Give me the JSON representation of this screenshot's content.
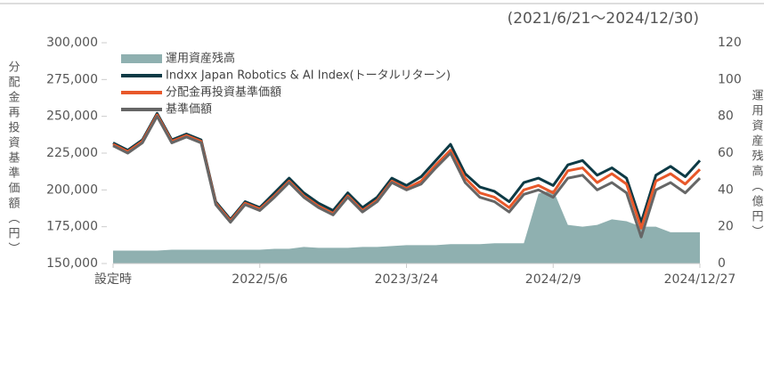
{
  "chart_data": {
    "type": "line",
    "subtitle": "(2021/6/21〜2024/12/30)",
    "ylabel": "分配金再投資基準価額（円）",
    "y2label": "運用資産残高（億円）",
    "categories": [
      "設定時",
      null,
      null,
      null,
      null,
      null,
      null,
      null,
      null,
      null,
      "2022/5/6",
      null,
      null,
      null,
      null,
      null,
      null,
      null,
      null,
      null,
      "2023/3/24",
      null,
      null,
      null,
      null,
      null,
      null,
      null,
      null,
      null,
      "2024/2/9",
      null,
      null,
      null,
      null,
      null,
      null,
      null,
      null,
      null,
      "2024/12/27"
    ],
    "ylim": [
      150000,
      300000
    ],
    "yticks": [
      {
        "value": 150000,
        "label": "150,000"
      },
      {
        "value": 175000,
        "label": "175,000"
      },
      {
        "value": 200000,
        "label": "200,000"
      },
      {
        "value": 225000,
        "label": "225,000"
      },
      {
        "value": 250000,
        "label": "250,000"
      },
      {
        "value": 275000,
        "label": "275,000"
      },
      {
        "value": 300000,
        "label": "300,000"
      }
    ],
    "y2lim": [
      0,
      120
    ],
    "y2ticks": [
      0,
      20,
      40,
      60,
      80,
      100,
      120
    ],
    "series": [
      {
        "name": "運用資産残高",
        "color": "#8fb0b0",
        "axis": "y2",
        "kind": "area",
        "values": [
          7,
          7,
          7,
          7,
          7.5,
          7.5,
          7.5,
          7.5,
          7.5,
          7.5,
          7.5,
          8,
          8,
          9,
          8.5,
          8.5,
          8.5,
          9,
          9,
          9.5,
          10,
          10,
          10,
          10.5,
          10.5,
          10.5,
          11,
          11,
          11,
          38,
          40,
          21,
          20,
          21,
          24,
          23,
          20,
          20,
          17,
          17,
          17
        ]
      },
      {
        "name": "Indxx Japan Robotics & AI Index(トータルリターン)",
        "color": "#0d3a45",
        "kind": "line",
        "values": [
          232000,
          227000,
          234000,
          252000,
          234000,
          238000,
          234000,
          192000,
          180000,
          192000,
          188000,
          198000,
          208000,
          198000,
          191000,
          186000,
          198000,
          188000,
          195000,
          208000,
          203000,
          209000,
          220000,
          231000,
          211000,
          202000,
          199000,
          192000,
          205000,
          208000,
          203000,
          217000,
          220000,
          210000,
          215000,
          208000,
          178000,
          210000,
          216000,
          209000,
          220000
        ]
      },
      {
        "name": "分配金再投資基準価額",
        "color": "#e8582a",
        "kind": "line",
        "values": [
          231000,
          226000,
          233000,
          251000,
          233000,
          237000,
          233000,
          191000,
          179000,
          191000,
          187000,
          196000,
          206000,
          196000,
          189000,
          184000,
          196000,
          186000,
          193000,
          206000,
          201000,
          206000,
          217000,
          227000,
          208000,
          198000,
          195000,
          188000,
          200000,
          203000,
          198000,
          213000,
          215000,
          205000,
          211000,
          204000,
          174000,
          206000,
          211000,
          204000,
          214000
        ]
      },
      {
        "name": "基準価額",
        "color": "#666666",
        "kind": "line",
        "values": [
          230000,
          225000,
          232000,
          250000,
          232000,
          236000,
          232000,
          190000,
          178000,
          190000,
          186000,
          195000,
          205000,
          195000,
          188000,
          183000,
          195000,
          185000,
          192000,
          205000,
          200000,
          204000,
          215000,
          225000,
          205000,
          195000,
          192000,
          185000,
          197000,
          200000,
          195000,
          208000,
          210000,
          200000,
          205000,
          198000,
          168000,
          200000,
          205000,
          198000,
          208000
        ]
      }
    ],
    "legend": "upper left"
  }
}
